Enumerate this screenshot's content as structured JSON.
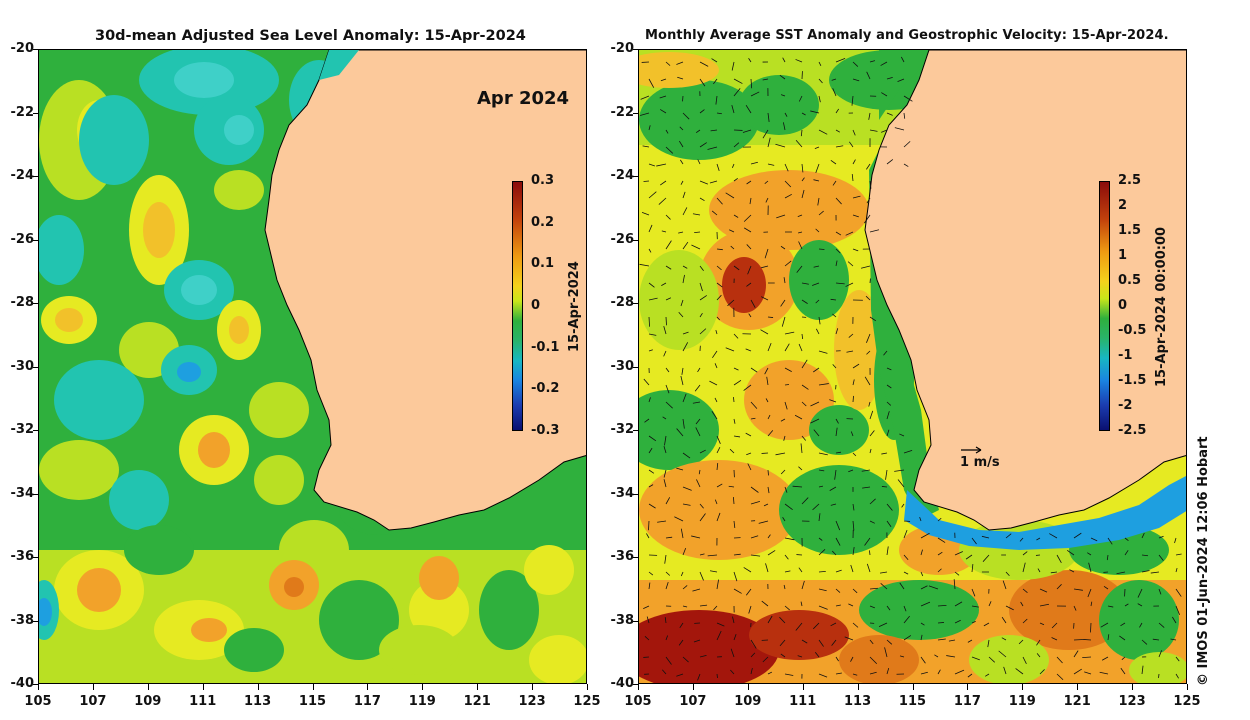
{
  "left_panel": {
    "title": "30d-mean Adjusted Sea Level Anomaly: 15-Apr-2024",
    "date_badge": "Apr 2024",
    "colorbar": {
      "ticks": [
        "0.3",
        "0.2",
        "0.1",
        "0",
        "-0.1",
        "-0.2",
        "-0.3"
      ],
      "label": "15-Apr-2024"
    }
  },
  "right_panel": {
    "title": "Monthly Average SST Anomaly  and Geostrophic Velocity: 15-Apr-2024.",
    "scale_arrow_label": "1 m/s",
    "colorbar": {
      "ticks": [
        "2.5",
        "2",
        "1.5",
        "1",
        "0.5",
        "0",
        "-0.5",
        "-1",
        "-1.5",
        "-2",
        "-2.5"
      ],
      "label": "15-Apr-2024 00:00:00"
    }
  },
  "axes": {
    "y_ticks": [
      "-20",
      "-22",
      "-24",
      "-26",
      "-28",
      "-30",
      "-32",
      "-34",
      "-36",
      "-38",
      "-40"
    ],
    "x_ticks": [
      "105",
      "107",
      "109",
      "111",
      "113",
      "115",
      "117",
      "119",
      "121",
      "123",
      "125"
    ]
  },
  "credit": "© IMOS 01-Jun-2024 12:06 Hobart",
  "colors": {
    "land": "#fcc99b",
    "ocean_green": "#2fb03d",
    "ocean_cyan": "#22c4b0",
    "ocean_yellow": "#e6ea22",
    "ocean_orange": "#f2a22a",
    "ocean_red": "#a3160c",
    "ocean_blue": "#1e7fe0"
  }
}
